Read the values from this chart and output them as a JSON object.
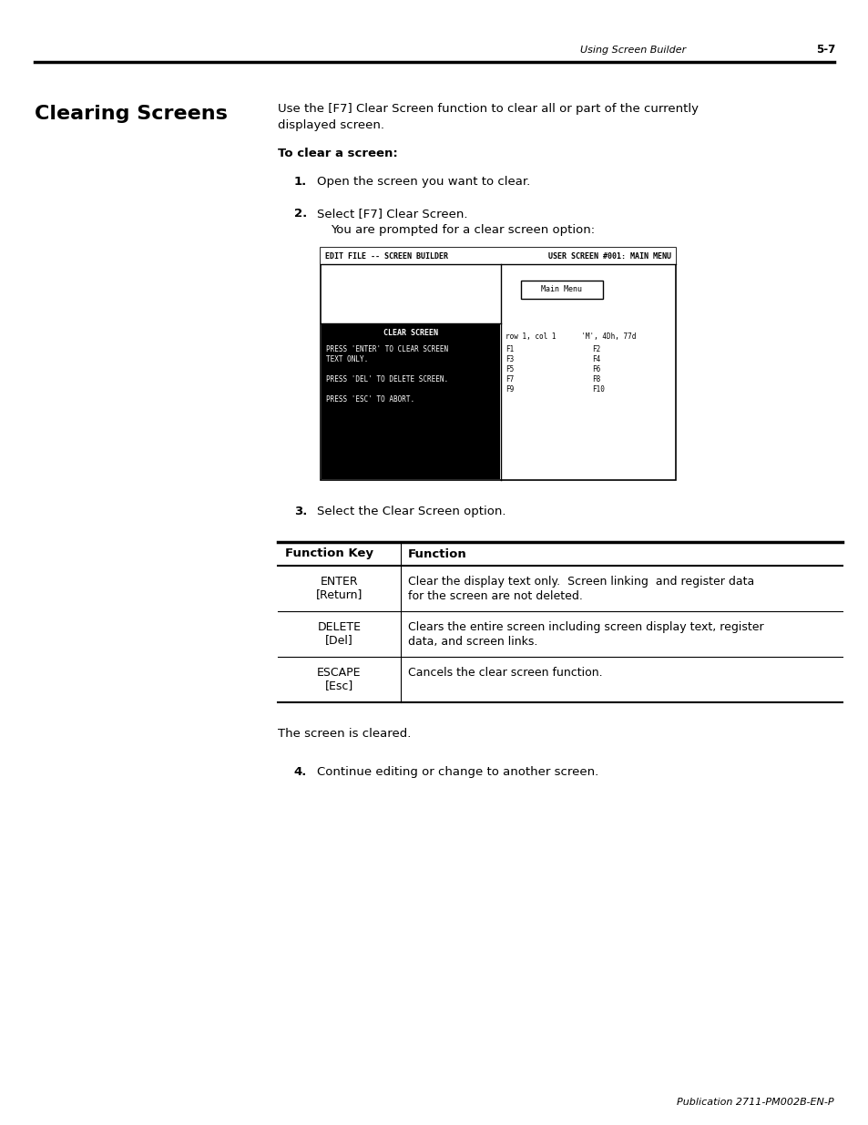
{
  "page_header_left": "Using Screen Builder",
  "page_header_right": "5-7",
  "section_title": "Clearing Screens",
  "intro_line1": "Use the [F7] Clear Screen function to clear all or part of the currently",
  "intro_line2": "displayed screen.",
  "bold_heading": "To clear a screen:",
  "step1_num": "1.",
  "step1_text": "Open the screen you want to clear.",
  "step2_num": "2.",
  "step2_text": "Select [F7] Clear Screen.",
  "step2b_text": "You are prompted for a clear screen option:",
  "step3_num": "3.",
  "step3_text": "Select the Clear Screen option.",
  "step4_num": "4.",
  "step4_text": "Continue editing or change to another screen.",
  "after_table_text": "The screen is cleared.",
  "screen_header": "EDIT FILE -- SCREEN BUILDER",
  "screen_header_right": "USER SCREEN #001: MAIN MENU",
  "main_menu_label": "Main Menu",
  "clear_screen_title": "CLEAR SCREEN",
  "cs_line1": "PRESS 'ENTER' TO CLEAR SCREEN",
  "cs_line2": "TEXT ONLY.",
  "cs_line3": "PRESS 'DEL' TO DELETE SCREEN.",
  "cs_line4": "PRESS 'ESC' TO ABORT.",
  "rp_status": "row 1, col 1      'M', 4Dh, 77d",
  "fkeys_left": [
    "F1",
    "F3",
    "F5",
    "F7",
    "F9"
  ],
  "fkeys_right": [
    "F2",
    "F4",
    "F6",
    "F8",
    "F10"
  ],
  "table_header1": "Function Key",
  "table_header2": "Function",
  "row1_key": "ENTER",
  "row1_sub": "[Return]",
  "row1_func1": "Clear the display text only.  Screen linking  and register data",
  "row1_func2": "for the screen are not deleted.",
  "row2_key": "DELETE",
  "row2_sub": "[Del]",
  "row2_func1": "Clears the entire screen including screen display text, register",
  "row2_func2": "data, and screen links.",
  "row3_key": "ESCAPE",
  "row3_sub": "[Esc]",
  "row3_func1": "Cancels the clear screen function.",
  "footer_text": "Publication 2711-PM002B-EN-P",
  "bg_color": "#ffffff"
}
